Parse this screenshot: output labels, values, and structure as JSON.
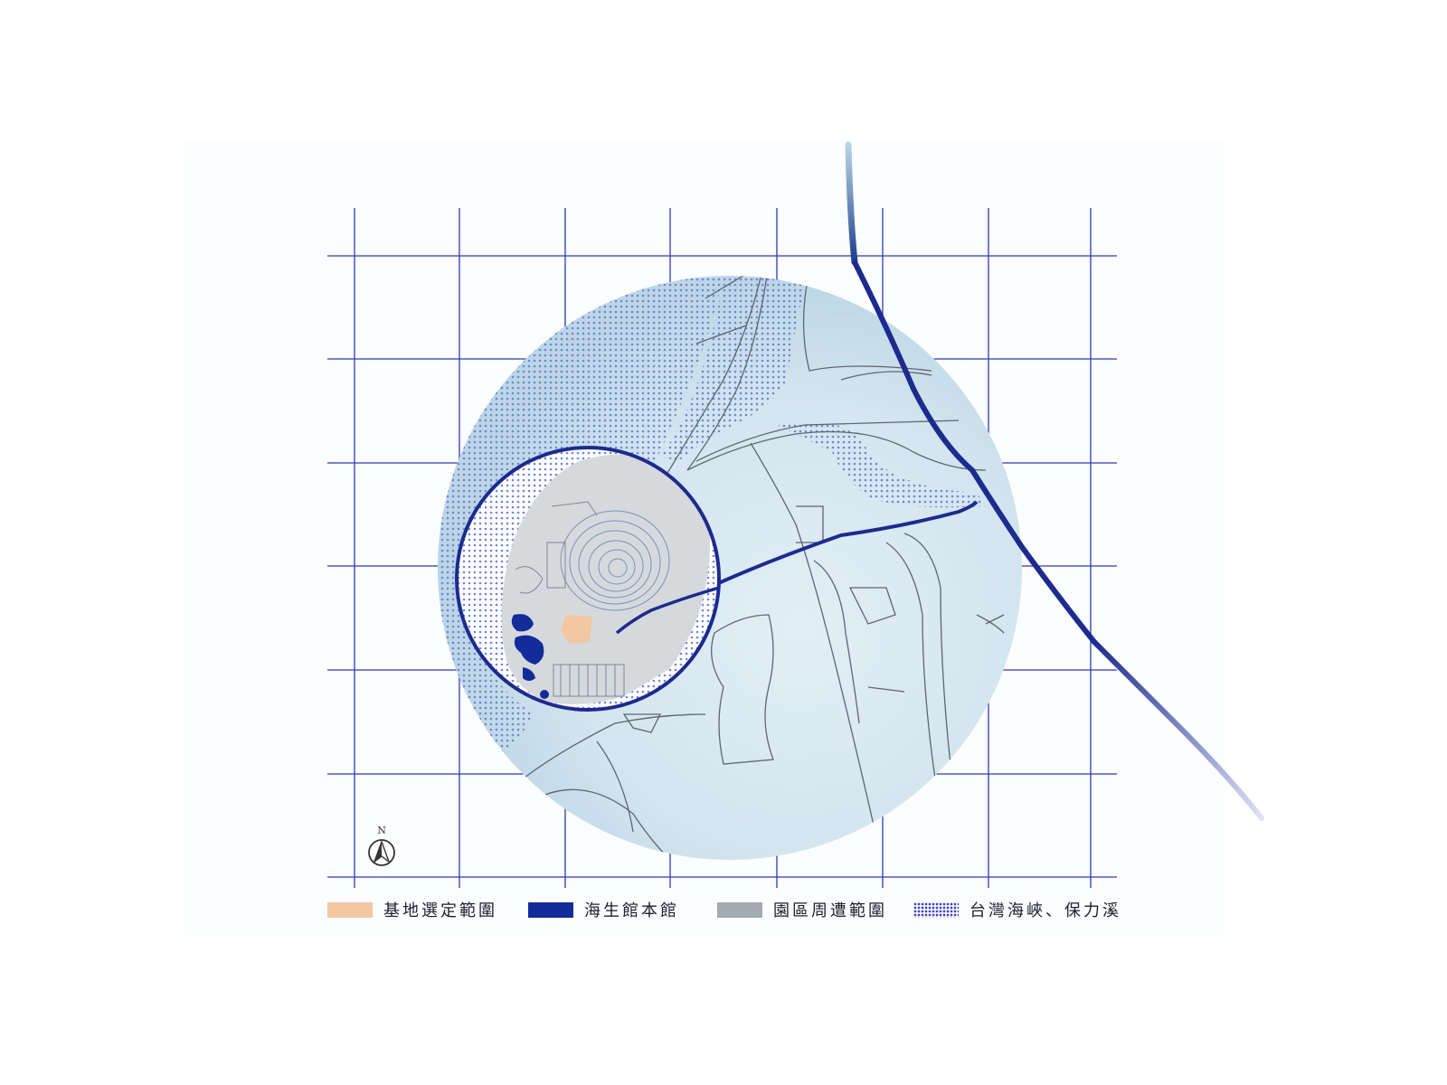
{
  "colors": {
    "grid": "#2b3bb3",
    "road_primary": "#1d2a8e",
    "road_minor": "#5d6570",
    "water_dots": "#6f86d6",
    "site": "#f2c8a2",
    "museum": "#132c9a",
    "park": "#a3abb0",
    "land_wash": "#cfe3ee"
  },
  "compass": {
    "letter": "N",
    "icon": "north-arrow-icon"
  },
  "legend": [
    {
      "name": "site",
      "label": "基地選定範圍",
      "color": "#f2c8a2",
      "pattern": "solid"
    },
    {
      "name": "museum",
      "label": "海生館本館",
      "color": "#132c9a",
      "pattern": "solid"
    },
    {
      "name": "park",
      "label": "園區周遭範圍",
      "color": "#a3abb0",
      "pattern": "solid"
    },
    {
      "name": "water",
      "label": "台灣海峽、保力溪",
      "color": "#3a43c2",
      "pattern": "dots"
    }
  ]
}
